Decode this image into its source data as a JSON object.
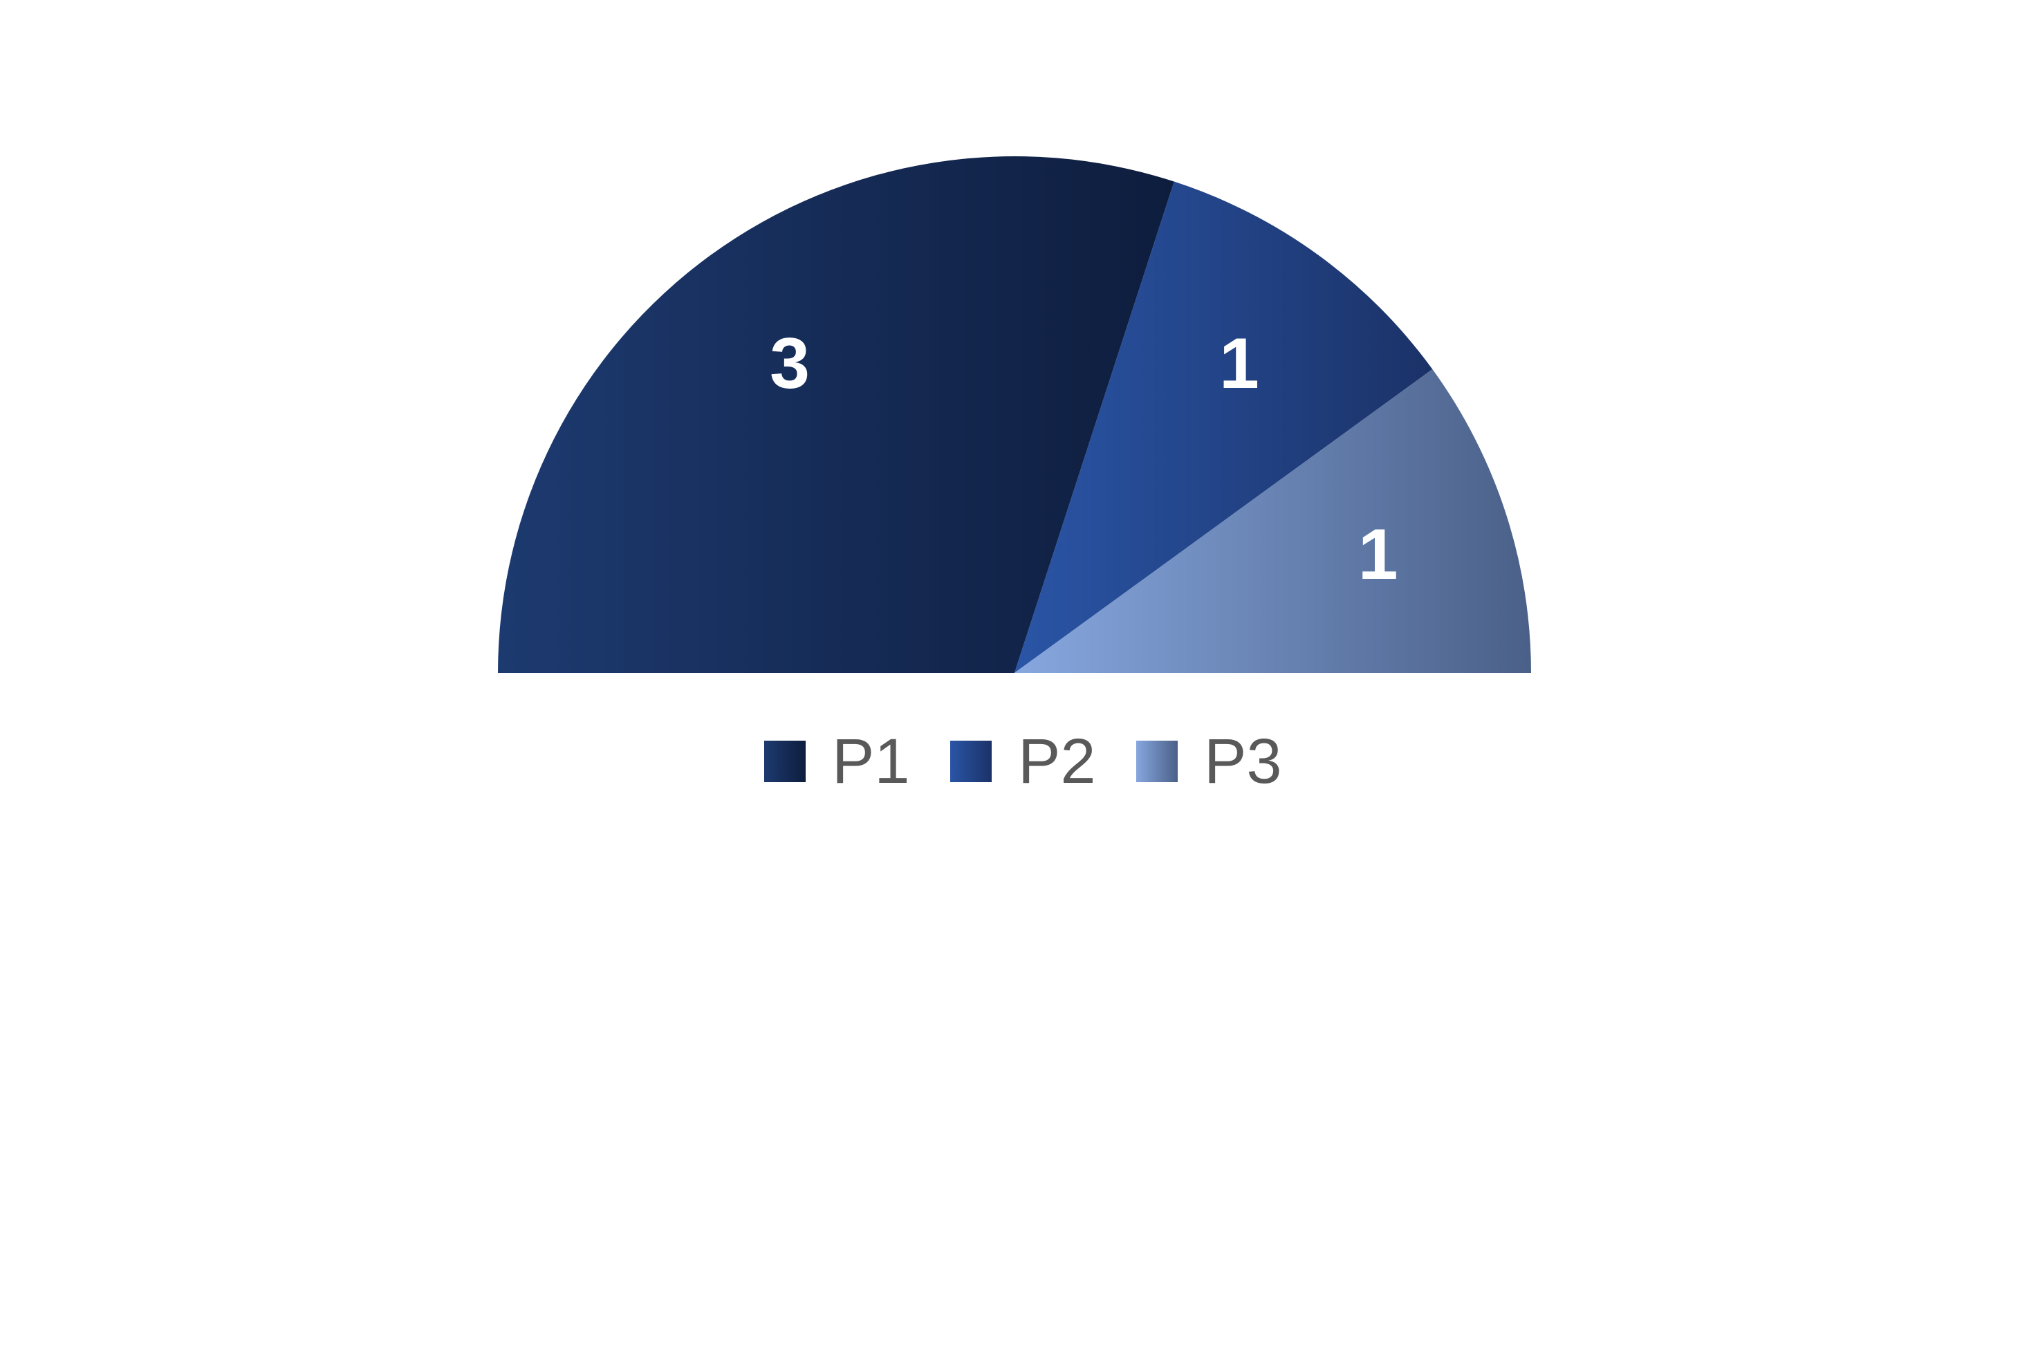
{
  "chart_data": {
    "type": "pie",
    "variant": "half-donut-semicircle",
    "categories": [
      "P1",
      "P2",
      "P3"
    ],
    "values": [
      3,
      1,
      1
    ],
    "data_labels": [
      "3",
      "1",
      "1"
    ],
    "colors": [
      {
        "from": "#1d3a70",
        "to": "#0e1d3d"
      },
      {
        "from": "#2a55a6",
        "to": "#1b3268"
      },
      {
        "from": "#87a7df",
        "to": "#4a6088"
      }
    ],
    "legend": {
      "placement": "bottom",
      "entries": [
        "P1",
        "P2",
        "P3"
      ]
    }
  }
}
